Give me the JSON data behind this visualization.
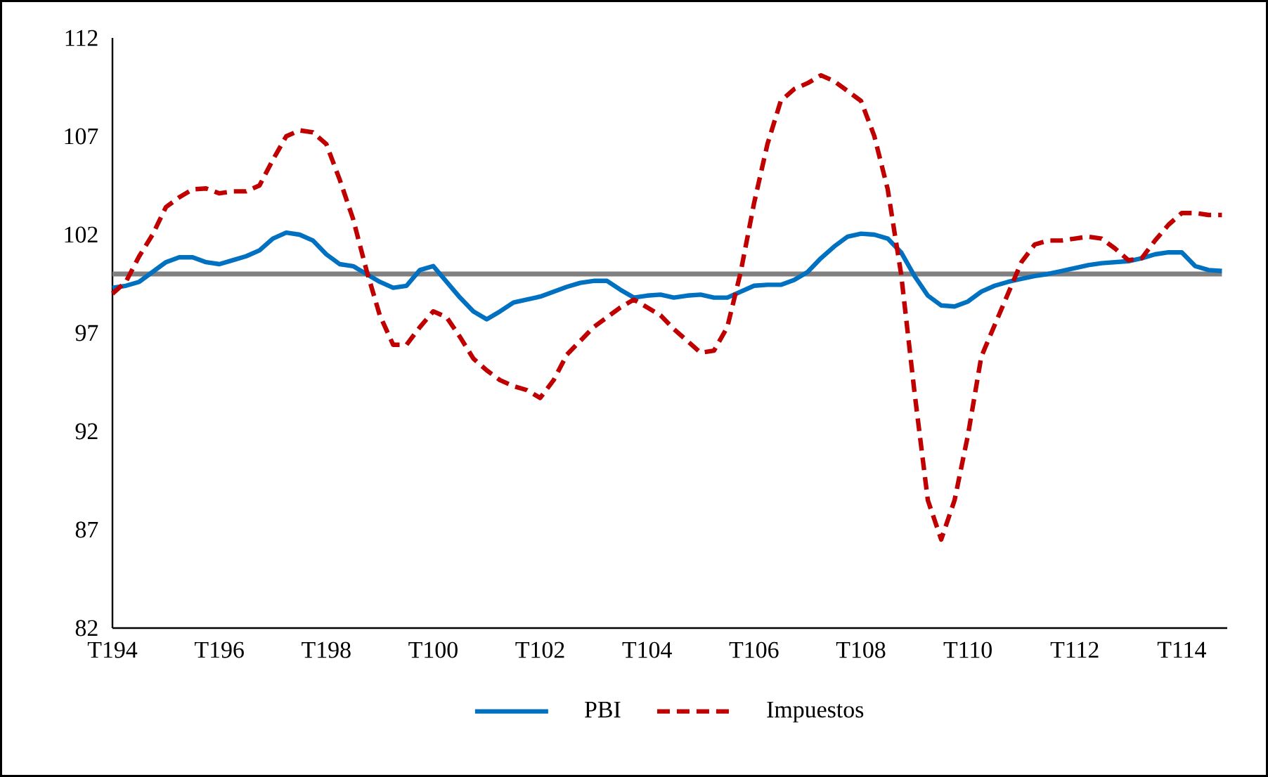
{
  "chart_data": {
    "type": "line",
    "categories": [
      "T194",
      null,
      null,
      null,
      null,
      null,
      null,
      null,
      "T196",
      null,
      null,
      null,
      null,
      null,
      null,
      null,
      "T198",
      null,
      null,
      null,
      null,
      null,
      null,
      null,
      "T100",
      null,
      null,
      null,
      null,
      null,
      null,
      null,
      "T102",
      null,
      null,
      null,
      null,
      null,
      null,
      null,
      "T104",
      null,
      null,
      null,
      null,
      null,
      null,
      null,
      "T106",
      null,
      null,
      null,
      null,
      null,
      null,
      null,
      "T108",
      null,
      null,
      null,
      null,
      null,
      null,
      null,
      "T110",
      null,
      null,
      null,
      null,
      null,
      null,
      null,
      "T112",
      null,
      null,
      null,
      null,
      null,
      null,
      null,
      "T114",
      null,
      null,
      null
    ],
    "ylim": [
      82,
      112
    ],
    "yticks": [
      82,
      87,
      92,
      97,
      102,
      107,
      112
    ],
    "grid": false,
    "legend": "bottom",
    "marker": "none",
    "ref_lines": [
      {
        "axis": "y",
        "value": 100,
        "color": "#808080"
      }
    ],
    "series": [
      {
        "name": "PBI",
        "color": "#0070c0",
        "line_style": "solid",
        "values": [
          99.3,
          99.4,
          99.6,
          100.1,
          100.6,
          100.85,
          100.85,
          100.6,
          100.5,
          100.7,
          100.9,
          101.2,
          101.8,
          102.1,
          102.0,
          101.7,
          101.0,
          100.5,
          100.4,
          100.0,
          99.6,
          99.3,
          99.4,
          100.2,
          100.4,
          99.6,
          98.8,
          98.1,
          97.7,
          98.1,
          98.55,
          98.7,
          98.85,
          99.1,
          99.35,
          99.55,
          99.65,
          99.65,
          99.2,
          98.8,
          98.9,
          98.95,
          98.8,
          98.9,
          98.95,
          98.8,
          98.8,
          99.1,
          99.4,
          99.45,
          99.45,
          99.7,
          100.1,
          100.8,
          101.4,
          101.9,
          102.05,
          102.0,
          101.8,
          101.1,
          99.9,
          98.9,
          98.4,
          98.35,
          98.6,
          99.1,
          99.4,
          99.6,
          99.75,
          99.9,
          100.0,
          100.15,
          100.3,
          100.45,
          100.55,
          100.6,
          100.65,
          100.8,
          101.0,
          101.1,
          101.1,
          100.4,
          100.2,
          100.15
        ]
      },
      {
        "name": "Impuestos",
        "color": "#c00000",
        "line_style": "dashed",
        "values": [
          99.0,
          99.6,
          100.9,
          102.0,
          103.4,
          103.9,
          104.3,
          104.35,
          104.1,
          104.2,
          104.2,
          104.5,
          105.8,
          107.0,
          107.3,
          107.2,
          106.6,
          104.8,
          102.8,
          100.2,
          97.9,
          96.4,
          96.4,
          97.3,
          98.1,
          97.8,
          96.8,
          95.7,
          95.1,
          94.6,
          94.3,
          94.1,
          93.7,
          94.6,
          95.9,
          96.6,
          97.3,
          97.8,
          98.3,
          98.7,
          98.3,
          97.9,
          97.2,
          96.6,
          96.0,
          96.1,
          97.3,
          100.1,
          103.6,
          106.6,
          108.8,
          109.4,
          109.7,
          110.1,
          109.8,
          109.3,
          108.8,
          107.0,
          104.3,
          100.0,
          94.0,
          88.5,
          86.5,
          88.5,
          91.8,
          95.8,
          97.4,
          99.0,
          100.6,
          101.5,
          101.7,
          101.7,
          101.8,
          101.9,
          101.8,
          101.3,
          100.7,
          100.8,
          101.7,
          102.5,
          103.1,
          103.1,
          103.0,
          103.0
        ]
      }
    ]
  }
}
